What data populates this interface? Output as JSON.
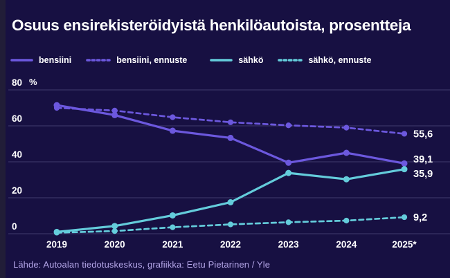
{
  "page": {
    "background_color": "#171042",
    "left_strip_color": "#211d38"
  },
  "title": "Osuus ensirekisteröidyistä henkilöautoista, prosentteja",
  "legend": {
    "items": [
      {
        "label": "bensiini",
        "color": "#6c58de",
        "style": "solid"
      },
      {
        "label": "bensiini, ennuste",
        "color": "#6c58de",
        "style": "dashed"
      },
      {
        "label": "sähkö",
        "color": "#64ccdb",
        "style": "solid"
      },
      {
        "label": "sähkö, ennuste",
        "color": "#64ccdb",
        "style": "dashed"
      }
    ]
  },
  "chart_data": {
    "type": "line",
    "title": "Osuus ensirekisteröidyistä henkilöautoista, prosentteja",
    "categories": [
      "2019",
      "2020",
      "2021",
      "2022",
      "2023",
      "2024",
      "2025*"
    ],
    "series": [
      {
        "name": "bensiini, ennuste",
        "color": "#6c58de",
        "dashed": true,
        "values": [
          70,
          68.5,
          64.8,
          62,
          60.3,
          59,
          55.6
        ],
        "end_label": "55,6"
      },
      {
        "name": "bensiini",
        "color": "#6c58de",
        "dashed": false,
        "values": [
          71.5,
          66,
          57.3,
          53.3,
          39.5,
          45,
          39.1
        ],
        "end_label": "39,1"
      },
      {
        "name": "sähkö, ennuste",
        "color": "#64ccdb",
        "dashed": true,
        "values": [
          0.6,
          1.5,
          3.6,
          5.2,
          6.4,
          7.3,
          9.2
        ],
        "end_label": "9,2"
      },
      {
        "name": "sähkö",
        "color": "#64ccdb",
        "dashed": false,
        "values": [
          1,
          4.3,
          10.2,
          17.5,
          33.8,
          30.3,
          35.9
        ],
        "end_label": "35,9"
      }
    ],
    "ylim": [
      0,
      80
    ],
    "yticks": [
      0,
      20,
      40,
      60,
      80
    ],
    "unit": "%",
    "grid": true,
    "grid_color": "#413b6f",
    "text_color": "#ffffff",
    "legend_position": "top"
  },
  "source": "Lähde: Autoalan tiedotuskeskus, grafiikka: Eetu Pietarinen / Yle"
}
